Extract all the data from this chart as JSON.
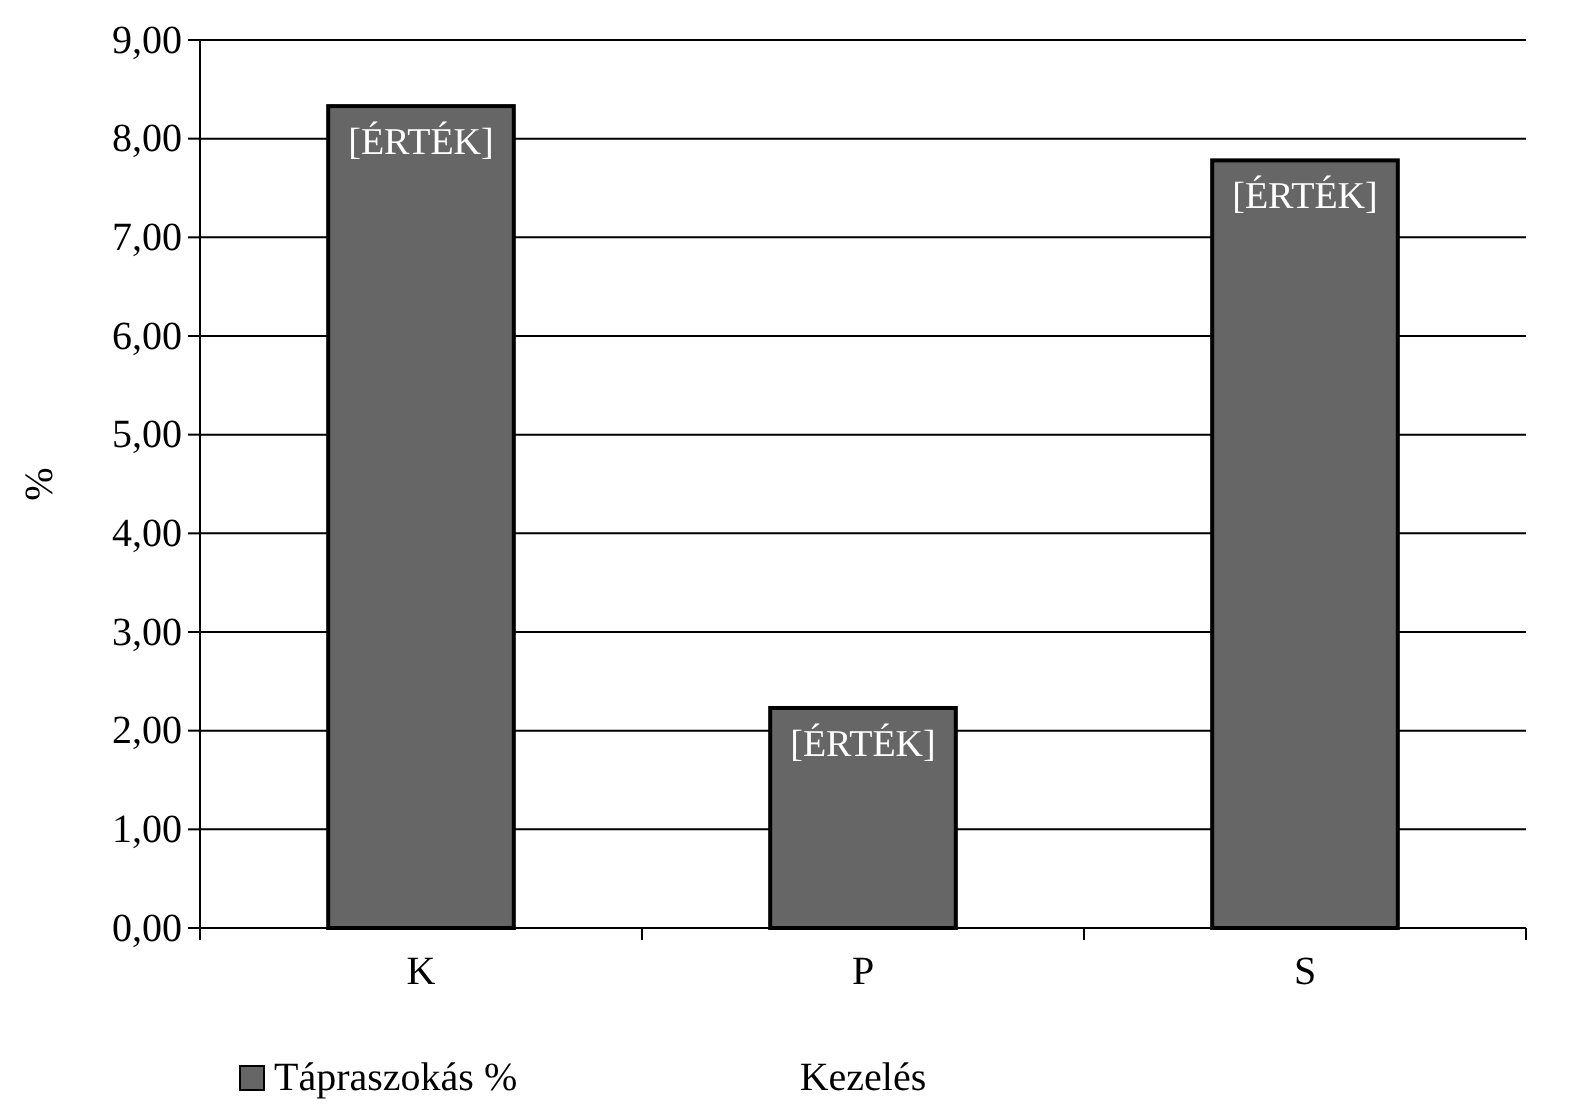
{
  "chart_data": {
    "type": "bar",
    "xlabel": "Kezelés",
    "ylabel": "%",
    "categories": [
      "K",
      "P",
      "S"
    ],
    "series": [
      {
        "name": "Tápraszokás %",
        "color": "#666666",
        "values": [
          8.33,
          2.23,
          7.78
        ],
        "value_labels": [
          "[ÉRTÉK]",
          "[ÉRTÉK]",
          "[ÉRTÉK]"
        ]
      }
    ],
    "ylim": [
      0,
      9
    ],
    "yticks": [
      {
        "value": 0,
        "label": "0,00"
      },
      {
        "value": 1,
        "label": "1,00"
      },
      {
        "value": 2,
        "label": "2,00"
      },
      {
        "value": 3,
        "label": "3,00"
      },
      {
        "value": 4,
        "label": "4,00"
      },
      {
        "value": 5,
        "label": "5,00"
      },
      {
        "value": 6,
        "label": "6,00"
      },
      {
        "value": 7,
        "label": "7,00"
      },
      {
        "value": 8,
        "label": "8,00"
      },
      {
        "value": 9,
        "label": "9,00"
      }
    ],
    "grid": "y",
    "legend": "bottom left"
  }
}
